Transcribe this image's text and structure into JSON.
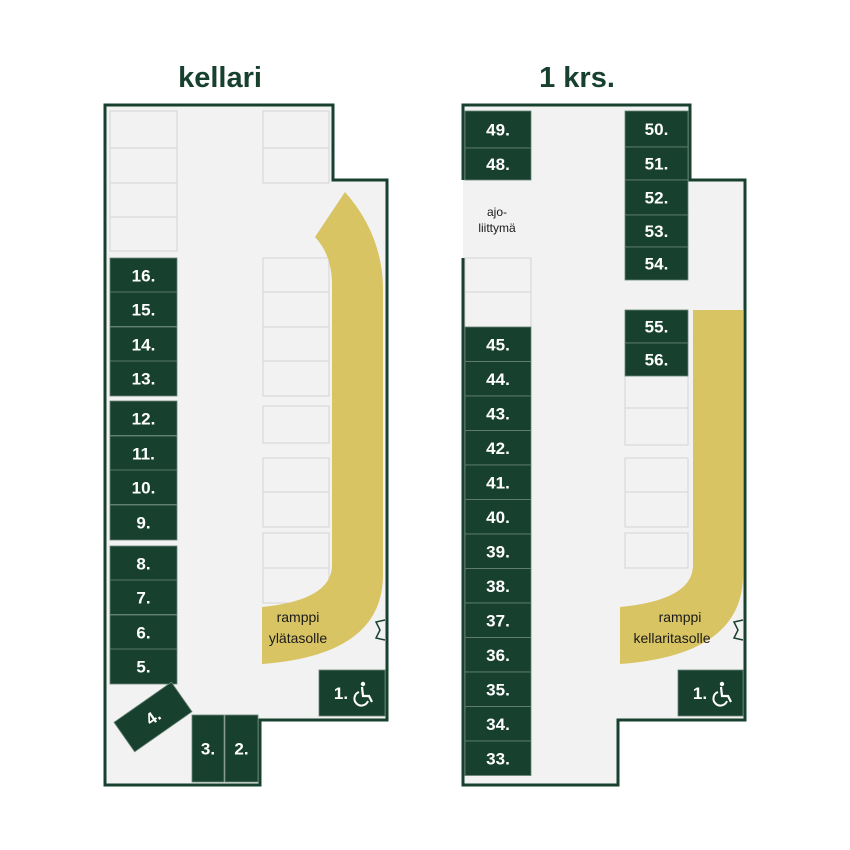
{
  "colors": {
    "wall": "#17402f",
    "floor": "#f2f2f2",
    "slot_reserved": "#17402f",
    "slot_empty": "#f2f2f2",
    "ramp": "#d9c463"
  },
  "left_plan": {
    "title": "kellari",
    "ramp_label_1": "ramppi",
    "ramp_label_2": "ylätasolle",
    "slots": [
      "16.",
      "15.",
      "14.",
      "13.",
      "12.",
      "11.",
      "10.",
      "9.",
      "8.",
      "7.",
      "6.",
      "5.",
      "4.",
      "3.",
      "2.",
      "1."
    ],
    "accessible_icon": "wheelchair-icon"
  },
  "right_plan": {
    "title": "1 krs.",
    "entrance_label_1": "ajo-",
    "entrance_label_2": "liittymä",
    "ramp_label_1": "ramppi",
    "ramp_label_2": "kellaritasolle",
    "slots_left": [
      "49.",
      "48.",
      "45.",
      "44.",
      "43.",
      "42.",
      "41.",
      "40.",
      "39.",
      "38.",
      "37.",
      "36.",
      "35.",
      "34.",
      "33."
    ],
    "slots_right": [
      "50.",
      "51.",
      "52.",
      "53.",
      "54.",
      "55.",
      "56."
    ],
    "slot_accessible": "1.",
    "accessible_icon": "wheelchair-icon"
  }
}
